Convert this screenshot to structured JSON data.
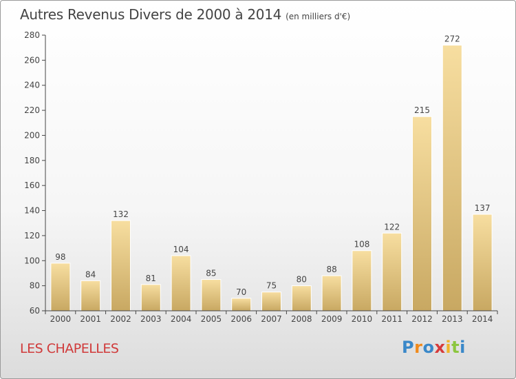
{
  "title": "Autres Revenus Divers de 2000 à 2014",
  "title_unit": "(en milliers d'€)",
  "commune": "LES CHAPELLES",
  "logo": {
    "text": "Proxiti",
    "letter_colors": [
      "#3a88c9",
      "#f08a1c",
      "#3a88c9",
      "#d63b3b",
      "#f0b429",
      "#8cc63f",
      "#3a88c9"
    ]
  },
  "colors": {
    "bar_light": "#f7dea0",
    "bar_dark": "#c8a862",
    "axis": "#444444"
  },
  "chart_data": {
    "type": "bar",
    "title": "Autres Revenus Divers de 2000 à 2014",
    "ylabel": "",
    "xlabel": "",
    "ylim": [
      60,
      280
    ],
    "yticks": [
      60,
      80,
      100,
      120,
      140,
      160,
      180,
      200,
      220,
      240,
      260,
      280
    ],
    "grid": false,
    "categories": [
      "2000",
      "2001",
      "2002",
      "2003",
      "2004",
      "2005",
      "2006",
      "2007",
      "2008",
      "2009",
      "2010",
      "2011",
      "2012",
      "2013",
      "2014"
    ],
    "values": [
      98,
      84,
      132,
      81,
      104,
      85,
      70,
      75,
      80,
      88,
      108,
      122,
      215,
      272,
      137
    ]
  }
}
